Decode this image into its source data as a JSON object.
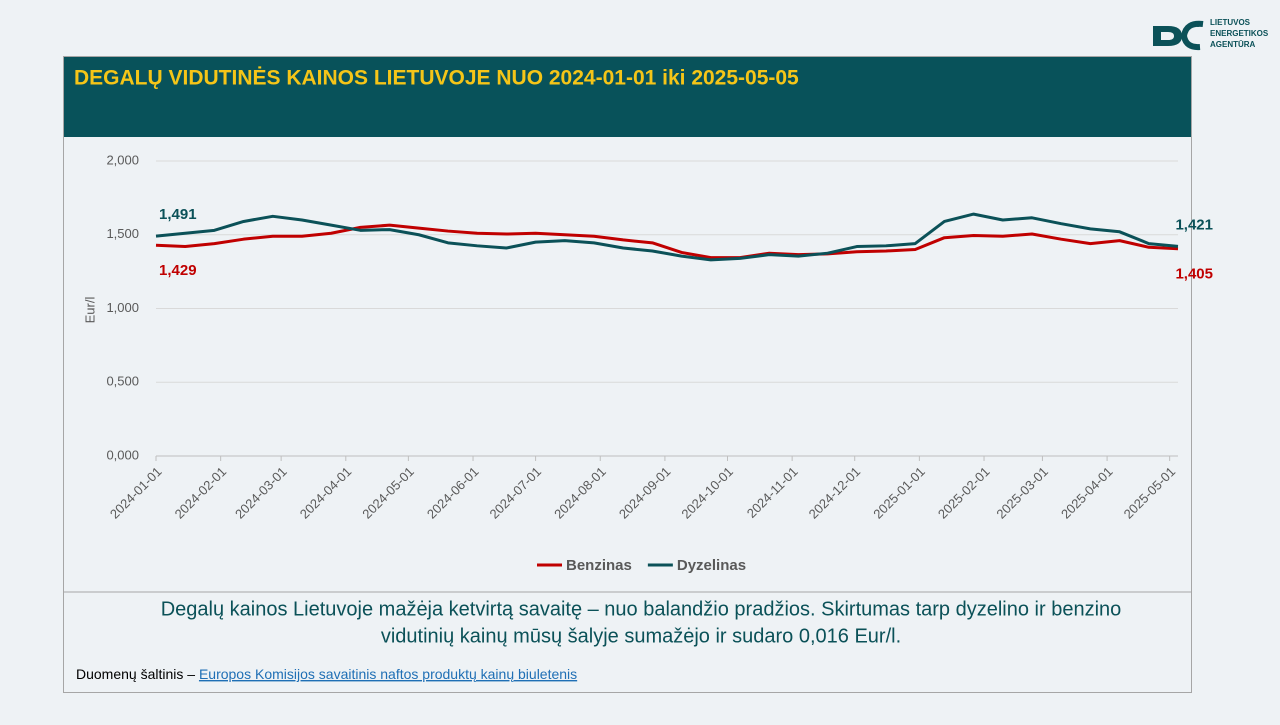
{
  "logo": {
    "lines": [
      "LIETUVOS",
      "ENERGETIKOS",
      "AGENTŪRA"
    ]
  },
  "chart_data": {
    "type": "line",
    "title": "DEGALŲ VIDUTINĖS KAINOS LIETUVOJE NUO 2024-01-01 iki 2025-05-05",
    "y_label": "Eur/l",
    "x": [
      "2024-01-01",
      "2024-01-15",
      "2024-01-29",
      "2024-02-12",
      "2024-02-26",
      "2024-03-11",
      "2024-03-25",
      "2024-04-08",
      "2024-04-22",
      "2024-05-06",
      "2024-05-20",
      "2024-06-03",
      "2024-06-17",
      "2024-07-01",
      "2024-07-15",
      "2024-07-29",
      "2024-08-12",
      "2024-08-26",
      "2024-09-09",
      "2024-09-23",
      "2024-10-07",
      "2024-10-21",
      "2024-11-04",
      "2024-11-18",
      "2024-12-02",
      "2024-12-16",
      "2024-12-30",
      "2025-01-13",
      "2025-01-27",
      "2025-02-10",
      "2025-02-24",
      "2025-03-10",
      "2025-03-24",
      "2025-04-07",
      "2025-04-21",
      "2025-05-05"
    ],
    "series": [
      {
        "name": "Benzinas",
        "color": "#c00000",
        "values": [
          1.429,
          1.42,
          1.44,
          1.47,
          1.49,
          1.49,
          1.51,
          1.55,
          1.565,
          1.545,
          1.525,
          1.51,
          1.505,
          1.51,
          1.5,
          1.49,
          1.465,
          1.445,
          1.38,
          1.345,
          1.345,
          1.375,
          1.365,
          1.37,
          1.385,
          1.39,
          1.4,
          1.48,
          1.495,
          1.49,
          1.505,
          1.47,
          1.44,
          1.46,
          1.415,
          1.405
        ],
        "value_labels": [
          "1,429",
          null,
          null,
          null,
          null,
          null,
          null,
          null,
          null,
          null,
          null,
          null,
          null,
          null,
          null,
          null,
          null,
          null,
          null,
          null,
          null,
          null,
          null,
          null,
          null,
          null,
          null,
          null,
          null,
          null,
          null,
          null,
          null,
          null,
          null,
          "1,405"
        ]
      },
      {
        "name": "Dyzelinas",
        "color": "#0b5158",
        "values": [
          1.491,
          1.51,
          1.53,
          1.59,
          1.625,
          1.6,
          1.565,
          1.53,
          1.535,
          1.5,
          1.445,
          1.425,
          1.41,
          1.45,
          1.46,
          1.445,
          1.41,
          1.39,
          1.355,
          1.33,
          1.34,
          1.365,
          1.355,
          1.375,
          1.42,
          1.425,
          1.44,
          1.59,
          1.64,
          1.6,
          1.615,
          1.575,
          1.54,
          1.52,
          1.44,
          1.421
        ],
        "value_labels": [
          "1,491",
          null,
          null,
          null,
          null,
          null,
          null,
          null,
          null,
          null,
          null,
          null,
          null,
          null,
          null,
          null,
          null,
          null,
          null,
          null,
          null,
          null,
          null,
          null,
          null,
          null,
          null,
          null,
          null,
          null,
          null,
          null,
          null,
          null,
          null,
          "1,421"
        ]
      }
    ],
    "xlim": [
      "2024-01-01",
      "2025-05-05"
    ],
    "xticks": [
      "2024-01-01",
      "2024-02-01",
      "2024-03-01",
      "2024-04-01",
      "2024-05-01",
      "2024-06-01",
      "2024-07-01",
      "2024-08-01",
      "2024-09-01",
      "2024-10-01",
      "2024-11-01",
      "2024-12-01",
      "2025-01-01",
      "2025-02-01",
      "2025-03-01",
      "2025-04-01",
      "2025-05-01"
    ],
    "ylim": [
      0,
      2
    ],
    "yticks": [
      {
        "value": 0,
        "label": "0,000"
      },
      {
        "value": 0.5,
        "label": "0,500"
      },
      {
        "value": 1,
        "label": "1,000"
      },
      {
        "value": 1.5,
        "label": "1,500"
      },
      {
        "value": 2,
        "label": "2,000"
      }
    ],
    "grid": true,
    "legend": "bottom"
  },
  "summary": "Degalų kainos Lietuvoje mažėja ketvirtą savaitę – nuo balandžio pradžios. Skirtumas tarp dyzelino ir benzino vidutinių kainų mūsų šalyje sumažėjo ir sudaro 0,016 Eur/l.",
  "source": {
    "label": "Duomenų šaltinis – ",
    "link": "Europos Komisijos savaitinis naftos produktų kainų biuletenis"
  }
}
